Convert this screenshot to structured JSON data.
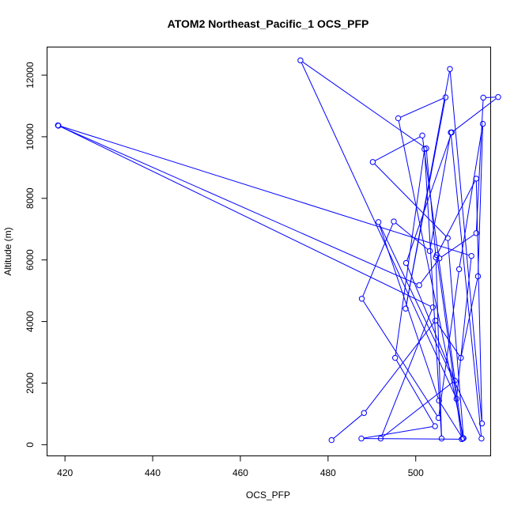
{
  "chart_data": {
    "type": "line",
    "title": "ATOM2 Northeast_Pacific_1 OCS_PFP",
    "xlabel": "OCS_PFP",
    "ylabel": "Altitude (m)",
    "xlim": [
      416,
      517
    ],
    "ylim": [
      -350,
      12900
    ],
    "xticks": [
      420,
      440,
      460,
      480,
      500
    ],
    "yticks": [
      0,
      2000,
      4000,
      6000,
      8000,
      10000,
      12000
    ],
    "grid": false,
    "color": "#0000ff",
    "marker": "open-circle",
    "series": [
      {
        "x": [
          480.8,
          488.2,
          504.5,
          510.3,
          514.2,
          515.3,
          509.9,
          505.2,
          487.7,
          495.0,
          503.2,
          508.0,
          515.0,
          491.5,
          505.3,
          510.7,
          501.5,
          490.2,
          507.3,
          510.9,
          496.0,
          506.8,
          497.7,
          507.8,
          515.1,
          513.8,
          504.8,
          510.5,
          487.6,
          504.4,
          495.3,
          502.0,
          505.9,
          504.6,
          502.4,
          473.7,
          509.3,
          512.7,
          418.4,
          503.9,
          492.0,
          508.9,
          497.8,
          508.2,
          518.8,
          515.4,
          513.8,
          505.4,
          500.8,
          418.5
        ],
        "y": [
          150,
          1030,
          4030,
          2820,
          5470,
          10420,
          5700,
          870,
          4740,
          7250,
          6290,
          10140,
          200,
          7230,
          1430,
          210,
          10040,
          9180,
          6710,
          210,
          10600,
          11280,
          4420,
          12200,
          690,
          8640,
          6160,
          180,
          200,
          600,
          2820,
          9600,
          200,
          6080,
          9620,
          12480,
          1490,
          6130,
          10370,
          4460,
          200,
          2080,
          5900,
          10140,
          11290,
          11270,
          6870,
          6050,
          5180,
          10360
        ]
      }
    ]
  }
}
